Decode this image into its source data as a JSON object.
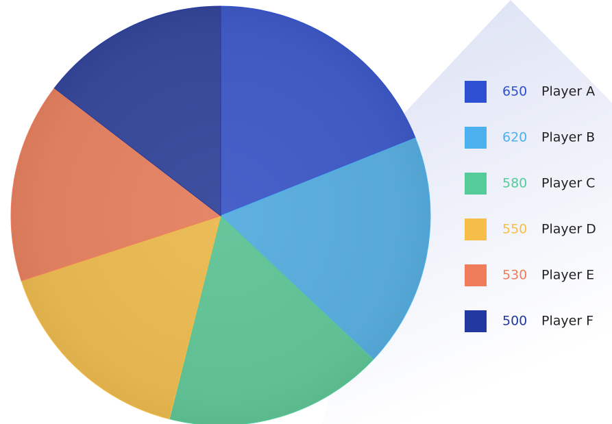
{
  "chart_data": {
    "type": "pie",
    "categories": [
      "Player A",
      "Player B",
      "Player C",
      "Player D",
      "Player E",
      "Player F"
    ],
    "values": [
      650,
      620,
      580,
      550,
      530,
      500
    ],
    "colors": [
      "#2f4fd3",
      "#4cb0ee",
      "#55cb9a",
      "#f6be48",
      "#ef7d5c",
      "#23399f"
    ],
    "legend": "right"
  }
}
